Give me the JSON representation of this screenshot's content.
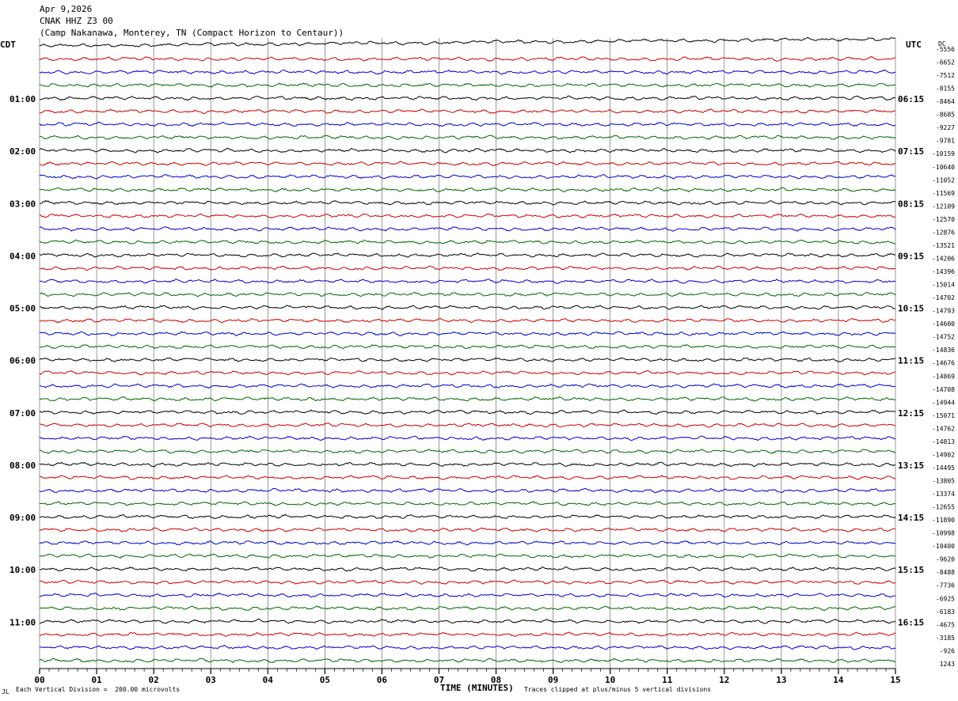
{
  "header": {
    "date": "Apr 9,2026",
    "channel": "CNAK HHZ Z3 00",
    "location": "(Camp Nakanawa, Monterey, TN (Compact Horizon to Centaur))"
  },
  "axes": {
    "left_label": "CDT",
    "right_label": "UTC",
    "dc_label": "DC",
    "xlabel": "TIME (MINUTES)"
  },
  "footer": {
    "mark": "JL",
    "scale_note": "Each Vertical Division =  200.00 microvolts",
    "clip_note": "Traces clipped at plus/minus 5 vertical divisions"
  },
  "chart_data": {
    "type": "line",
    "title": "CNAK HHZ Z3 00",
    "xlim": [
      0,
      15
    ],
    "x_ticks": [
      "00",
      "01",
      "02",
      "03",
      "04",
      "05",
      "06",
      "07",
      "08",
      "09",
      "10",
      "11",
      "12",
      "13",
      "14",
      "15"
    ],
    "trace_colors": [
      "#000000",
      "#cc0000",
      "#0000cc",
      "#006600"
    ],
    "trace_minutes_each": 15,
    "left_time_labels": [
      {
        "row": 4,
        "label": "01:00"
      },
      {
        "row": 8,
        "label": "02:00"
      },
      {
        "row": 12,
        "label": "03:00"
      },
      {
        "row": 16,
        "label": "04:00"
      },
      {
        "row": 20,
        "label": "05:00"
      },
      {
        "row": 24,
        "label": "06:00"
      },
      {
        "row": 28,
        "label": "07:00"
      },
      {
        "row": 32,
        "label": "08:00"
      },
      {
        "row": 36,
        "label": "09:00"
      },
      {
        "row": 40,
        "label": "10:00"
      },
      {
        "row": 44,
        "label": "11:00"
      }
    ],
    "right_time_labels": [
      {
        "row": 4,
        "label": "06:15"
      },
      {
        "row": 8,
        "label": "07:15"
      },
      {
        "row": 12,
        "label": "08:15"
      },
      {
        "row": 16,
        "label": "09:15"
      },
      {
        "row": 20,
        "label": "10:15"
      },
      {
        "row": 24,
        "label": "11:15"
      },
      {
        "row": 28,
        "label": "12:15"
      },
      {
        "row": 32,
        "label": "13:15"
      },
      {
        "row": 36,
        "label": "14:15"
      },
      {
        "row": 40,
        "label": "15:15"
      },
      {
        "row": 44,
        "label": "16:15"
      }
    ],
    "dc_offsets": [
      "-5556",
      "-6652",
      "-7512",
      "-8155",
      "-8464",
      "-8685",
      "-9227",
      "-9781",
      "-10159",
      "-10640",
      "-11052",
      "-11569",
      "-12109",
      "-12570",
      "-12876",
      "-13521",
      "-14206",
      "-14396",
      "-15014",
      "-14702",
      "-14793",
      "-14600",
      "-14752",
      "-14836",
      "-14676",
      "-14869",
      "-14708",
      "-14944",
      "-15071",
      "-14762",
      "-14813",
      "-14902",
      "-14495",
      "-13805",
      "-13374",
      "-12655",
      "-11890",
      "-10998",
      "-10400",
      "-9620",
      "-8488",
      "-7736",
      "-6925",
      "-6183",
      "-4675",
      "-3185",
      "-926",
      "1243"
    ]
  }
}
